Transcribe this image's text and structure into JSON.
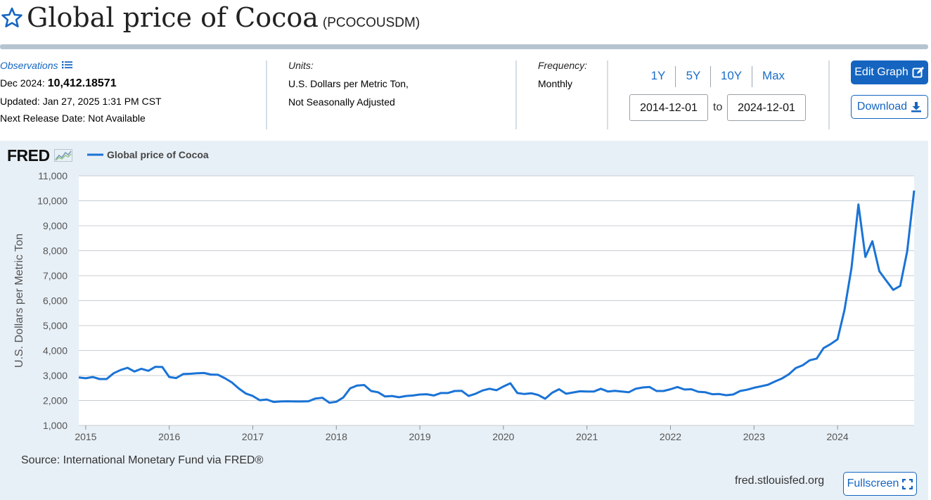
{
  "header": {
    "title": "Global price of Cocoa",
    "series_id": "(PCOCOUSDM)"
  },
  "observations": {
    "label": "Observations",
    "date_label": "Dec 2024:",
    "value": "10,412.18571",
    "updated": "Updated: Jan 27, 2025 1:31 PM CST",
    "next_release": "Next Release Date: Not Available"
  },
  "units": {
    "label": "Units:",
    "line1": "U.S. Dollars per Metric Ton,",
    "line2": "Not Seasonally Adjusted"
  },
  "frequency": {
    "label": "Frequency:",
    "value": "Monthly"
  },
  "range": {
    "buttons": [
      "1Y",
      "5Y",
      "10Y",
      "Max"
    ],
    "start": "2014-12-01",
    "to_label": "to",
    "end": "2024-12-01"
  },
  "actions": {
    "edit_label": "Edit Graph",
    "download_label": "Download",
    "fullscreen_label": "Fullscreen"
  },
  "footer": {
    "source": "Source: International Monetary Fund via FRED®",
    "url": "fred.stlouisfed.org"
  },
  "logo": {
    "text": "FRED"
  },
  "colors": {
    "accent": "#1565c0",
    "line": "#1a73d6",
    "panel": "#e8f0f7"
  },
  "chart_data": {
    "type": "line",
    "title": "",
    "xlabel": "",
    "ylabel": "U.S. Dollars per Metric Ton",
    "ylim": [
      1000,
      11000
    ],
    "yticks": [
      "1,000",
      "2,000",
      "3,000",
      "4,000",
      "5,000",
      "6,000",
      "7,000",
      "8,000",
      "9,000",
      "10,000",
      "11,000"
    ],
    "xticks": [
      "2015",
      "2016",
      "2017",
      "2018",
      "2019",
      "2020",
      "2021",
      "2022",
      "2023",
      "2024"
    ],
    "grid": true,
    "legend_position": "top-left",
    "series": [
      {
        "name": "Global price of Cocoa",
        "x": [
          "2014-12",
          "2015-01",
          "2015-02",
          "2015-03",
          "2015-04",
          "2015-05",
          "2015-06",
          "2015-07",
          "2015-08",
          "2015-09",
          "2015-10",
          "2015-11",
          "2015-12",
          "2016-01",
          "2016-02",
          "2016-03",
          "2016-04",
          "2016-05",
          "2016-06",
          "2016-07",
          "2016-08",
          "2016-09",
          "2016-10",
          "2016-11",
          "2016-12",
          "2017-01",
          "2017-02",
          "2017-03",
          "2017-04",
          "2017-05",
          "2017-06",
          "2017-07",
          "2017-08",
          "2017-09",
          "2017-10",
          "2017-11",
          "2017-12",
          "2018-01",
          "2018-02",
          "2018-03",
          "2018-04",
          "2018-05",
          "2018-06",
          "2018-07",
          "2018-08",
          "2018-09",
          "2018-10",
          "2018-11",
          "2018-12",
          "2019-01",
          "2019-02",
          "2019-03",
          "2019-04",
          "2019-05",
          "2019-06",
          "2019-07",
          "2019-08",
          "2019-09",
          "2019-10",
          "2019-11",
          "2019-12",
          "2020-01",
          "2020-02",
          "2020-03",
          "2020-04",
          "2020-05",
          "2020-06",
          "2020-07",
          "2020-08",
          "2020-09",
          "2020-10",
          "2020-11",
          "2020-12",
          "2021-01",
          "2021-02",
          "2021-03",
          "2021-04",
          "2021-05",
          "2021-06",
          "2021-07",
          "2021-08",
          "2021-09",
          "2021-10",
          "2021-11",
          "2021-12",
          "2022-01",
          "2022-02",
          "2022-03",
          "2022-04",
          "2022-05",
          "2022-06",
          "2022-07",
          "2022-08",
          "2022-09",
          "2022-10",
          "2022-11",
          "2022-12",
          "2023-01",
          "2023-02",
          "2023-03",
          "2023-04",
          "2023-05",
          "2023-06",
          "2023-07",
          "2023-08",
          "2023-09",
          "2023-10",
          "2023-11",
          "2023-12",
          "2024-01",
          "2024-02",
          "2024-03",
          "2024-04",
          "2024-05",
          "2024-06",
          "2024-07",
          "2024-08",
          "2024-09",
          "2024-10",
          "2024-11",
          "2024-12"
        ],
        "values": [
          2920,
          2890,
          2940,
          2860,
          2860,
          3090,
          3220,
          3310,
          3160,
          3270,
          3190,
          3350,
          3340,
          2940,
          2900,
          3060,
          3070,
          3090,
          3100,
          3040,
          3030,
          2890,
          2720,
          2480,
          2280,
          2180,
          2010,
          2040,
          1940,
          1960,
          1970,
          1960,
          1960,
          1970,
          2080,
          2110,
          1910,
          1950,
          2120,
          2490,
          2600,
          2620,
          2380,
          2330,
          2160,
          2180,
          2130,
          2180,
          2200,
          2240,
          2250,
          2200,
          2300,
          2300,
          2380,
          2390,
          2180,
          2270,
          2400,
          2470,
          2410,
          2560,
          2690,
          2300,
          2260,
          2290,
          2220,
          2070,
          2310,
          2450,
          2270,
          2320,
          2370,
          2360,
          2360,
          2470,
          2360,
          2390,
          2360,
          2330,
          2470,
          2520,
          2540,
          2380,
          2380,
          2450,
          2540,
          2440,
          2450,
          2350,
          2330,
          2250,
          2260,
          2210,
          2240,
          2380,
          2430,
          2510,
          2570,
          2630,
          2760,
          2880,
          3050,
          3300,
          3410,
          3610,
          3680,
          4100,
          4260,
          4450,
          5630,
          7300,
          9850,
          7750,
          8380,
          7180,
          6800,
          6430,
          6590,
          7970,
          10412
        ]
      }
    ]
  }
}
